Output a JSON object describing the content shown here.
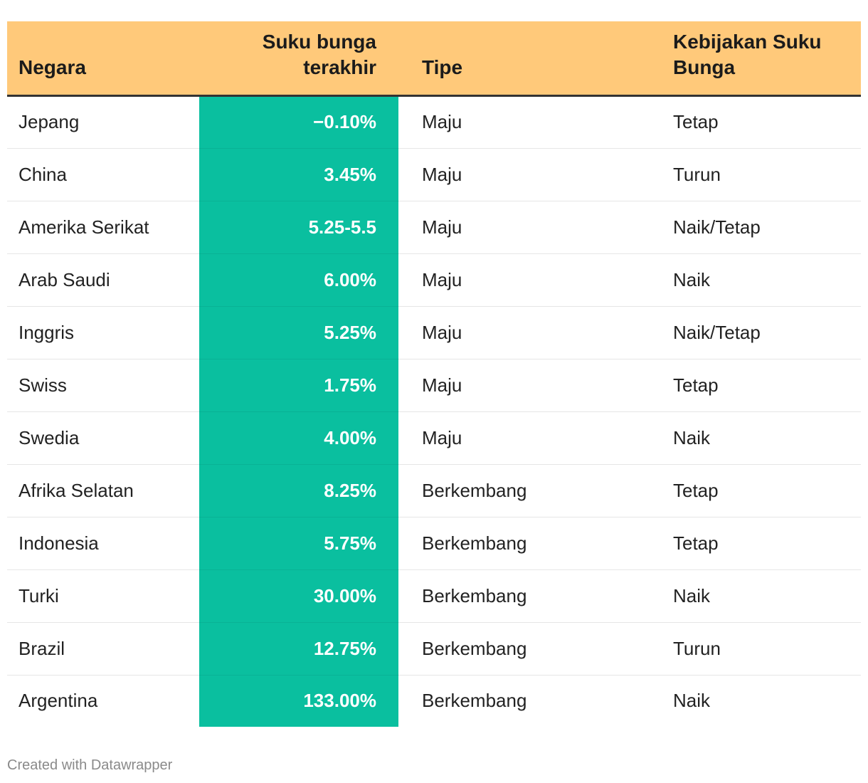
{
  "chart_data": {
    "type": "table",
    "columns": [
      "Negara",
      "Suku bunga terakhir",
      "Tipe",
      "Kebijakan Suku Bunga"
    ],
    "rows": [
      {
        "negara": "Jepang",
        "rate": "−0.10%",
        "tipe": "Maju",
        "kebijakan": "Tetap"
      },
      {
        "negara": "China",
        "rate": "3.45%",
        "tipe": "Maju",
        "kebijakan": "Turun"
      },
      {
        "negara": "Amerika Serikat",
        "rate": "5.25-5.5",
        "tipe": "Maju",
        "kebijakan": "Naik/Tetap"
      },
      {
        "negara": "Arab Saudi",
        "rate": "6.00%",
        "tipe": "Maju",
        "kebijakan": "Naik"
      },
      {
        "negara": "Inggris",
        "rate": "5.25%",
        "tipe": "Maju",
        "kebijakan": "Naik/Tetap"
      },
      {
        "negara": "Swiss",
        "rate": "1.75%",
        "tipe": "Maju",
        "kebijakan": "Tetap"
      },
      {
        "negara": "Swedia",
        "rate": "4.00%",
        "tipe": "Maju",
        "kebijakan": "Naik"
      },
      {
        "negara": "Afrika Selatan",
        "rate": "8.25%",
        "tipe": "Berkembang",
        "kebijakan": "Tetap"
      },
      {
        "negara": "Indonesia",
        "rate": "5.75%",
        "tipe": "Berkembang",
        "kebijakan": "Tetap"
      },
      {
        "negara": "Turki",
        "rate": "30.00%",
        "tipe": "Berkembang",
        "kebijakan": "Naik"
      },
      {
        "negara": "Brazil",
        "rate": "12.75%",
        "tipe": "Berkembang",
        "kebijakan": "Turun"
      },
      {
        "negara": "Argentina",
        "rate": "133.00%",
        "tipe": "Berkembang",
        "kebijakan": "Naik"
      }
    ],
    "header_color": "#ffc97a",
    "highlight_column_color": "#0abf9f"
  },
  "footer": {
    "credit": "Created with Datawrapper"
  }
}
